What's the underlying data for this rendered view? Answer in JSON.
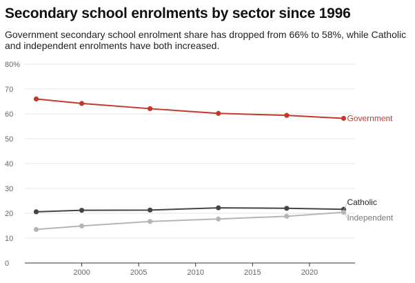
{
  "title": "Secondary school enrolments by sector since 1996",
  "subtitle": "Government secondary school enrolment share has dropped from 66% to 58%, while Catholic and independent enrolments have both increased.",
  "chart_data": {
    "type": "line",
    "title": "Secondary school enrolments by sector since 1996",
    "xlabel": "",
    "ylabel": "",
    "xlim": [
      1995,
      2024
    ],
    "ylim": [
      0,
      80
    ],
    "y_ticks": [
      0,
      10,
      20,
      30,
      40,
      50,
      60,
      70,
      80
    ],
    "y_tick_labels": [
      "0",
      "10",
      "20",
      "30",
      "40",
      "50",
      "60",
      "70",
      "80%"
    ],
    "x_ticks": [
      2000,
      2005,
      2010,
      2015,
      2020
    ],
    "x_tick_labels": [
      "2000",
      "2005",
      "2010",
      "2015",
      "2020"
    ],
    "grid": "horizontal",
    "legend": "direct labels at line ends",
    "series": [
      {
        "name": "Government",
        "color": "#c0392b",
        "label_color": "#c0392b",
        "x": [
          1996,
          2000,
          2006,
          2012,
          2018,
          2023
        ],
        "values": [
          66,
          64.2,
          62.1,
          60.2,
          59.4,
          58.2
        ]
      },
      {
        "name": "Catholic",
        "color": "#444444",
        "label_color": "#222222",
        "x": [
          1996,
          2000,
          2006,
          2012,
          2018,
          2023
        ],
        "values": [
          20.6,
          21.2,
          21.3,
          22.2,
          22.0,
          21.6
        ]
      },
      {
        "name": "Independent",
        "color": "#b5b5b5",
        "label_color": "#777777",
        "x": [
          1996,
          2000,
          2006,
          2012,
          2018,
          2023
        ],
        "values": [
          13.5,
          14.9,
          16.7,
          17.7,
          18.8,
          20.4
        ]
      }
    ]
  }
}
